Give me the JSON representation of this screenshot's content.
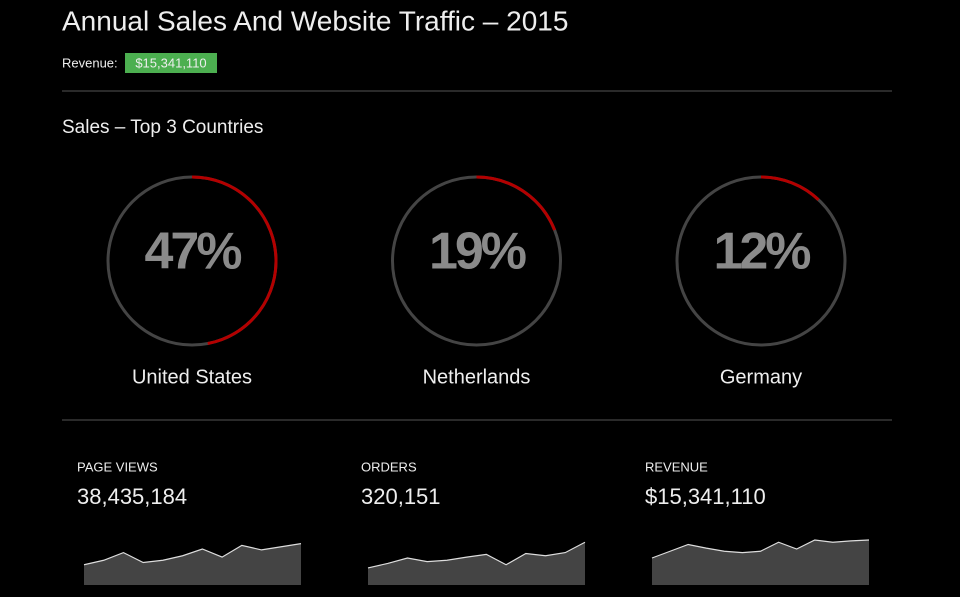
{
  "header": {
    "title": "Annual Sales And Website Traffic – 2015",
    "revenue_label": "Revenue:",
    "revenue_value": "$15,341,110"
  },
  "sales": {
    "title": "Sales – Top 3 Countries",
    "lim": [
      0,
      100
    ],
    "gauges": [
      {
        "label": "United States",
        "value": 47,
        "value_label": "47%"
      },
      {
        "label": "Netherlands",
        "value": 19,
        "value_label": "19%"
      },
      {
        "label": "Germany",
        "value": 12,
        "value_label": "12%"
      }
    ]
  },
  "stats": [
    {
      "label": "PAGE VIEWS",
      "value": "38,435,184",
      "ylim": [
        0,
        100
      ],
      "sparkline": [
        45,
        55,
        72,
        50,
        55,
        65,
        80,
        62,
        88,
        78,
        85,
        92
      ]
    },
    {
      "label": "ORDERS",
      "value": "320,151",
      "ylim": [
        0,
        100
      ],
      "sparkline": [
        38,
        48,
        60,
        52,
        55,
        62,
        68,
        45,
        70,
        65,
        72,
        95
      ]
    },
    {
      "label": "REVENUE",
      "value": "$15,341,110",
      "ylim": [
        0,
        100
      ],
      "sparkline": [
        60,
        75,
        90,
        82,
        75,
        72,
        75,
        95,
        80,
        100,
        95,
        98,
        100
      ]
    }
  ]
}
